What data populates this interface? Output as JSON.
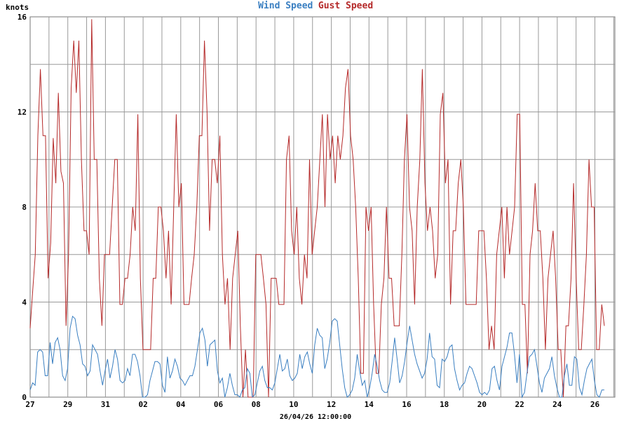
{
  "chart_data": {
    "type": "line",
    "title_parts": [
      {
        "text": "Wind Speed",
        "color": "#3a7fc1"
      },
      {
        "text": "Gust Speed",
        "color": "#b52a2a"
      }
    ],
    "ylabel": "knots",
    "xlabel": "26/04/26 12:00:00",
    "ylim": [
      0,
      16
    ],
    "yticks": [
      0,
      4,
      8,
      12,
      16
    ],
    "grid": true,
    "x_start": 27,
    "x_end": 26.3,
    "x_tick_labels": [
      "27",
      "29",
      "31",
      "02",
      "04",
      "06",
      "08",
      "10",
      "12",
      "14",
      "16",
      "18",
      "20",
      "22",
      "24",
      "26"
    ],
    "series": [
      {
        "name": "Wind Speed",
        "color": "#3a7fc1",
        "values": [
          0.3,
          0.6,
          0.5,
          1.9,
          2.0,
          1.9,
          0.9,
          0.9,
          2.3,
          1.4,
          2.3,
          2.5,
          2.0,
          0.9,
          0.7,
          1.2,
          2.9,
          3.4,
          3.3,
          2.6,
          2.2,
          1.4,
          1.3,
          0.9,
          1.1,
          2.2,
          2.0,
          1.8,
          1.1,
          0.5,
          1.1,
          1.6,
          0.8,
          1.3,
          2.0,
          1.6,
          0.7,
          0.6,
          0.7,
          1.2,
          0.9,
          1.8,
          1.8,
          1.5,
          0.9,
          0.0,
          0.0,
          0.1,
          0.7,
          1.1,
          1.5,
          1.5,
          1.4,
          0.5,
          0.2,
          1.7,
          0.8,
          1.1,
          1.6,
          1.3,
          0.8,
          0.7,
          0.5,
          0.7,
          0.9,
          0.9,
          1.3,
          2.0,
          2.7,
          2.9,
          2.4,
          1.3,
          2.2,
          2.3,
          2.4,
          1.1,
          0.6,
          0.8,
          0.0,
          0.4,
          1.0,
          0.5,
          0.1,
          0.1,
          0.0,
          0.3,
          0.4,
          1.2,
          1.0,
          0.0,
          0.1,
          0.6,
          1.1,
          1.3,
          0.7,
          0.4,
          0.4,
          0.3,
          0.6,
          1.2,
          1.8,
          1.1,
          1.2,
          1.6,
          0.9,
          0.7,
          0.8,
          1.0,
          1.8,
          1.2,
          1.7,
          1.9,
          1.4,
          1.0,
          2.2,
          2.9,
          2.6,
          2.5,
          1.2,
          1.6,
          2.3,
          3.2,
          3.3,
          3.2,
          2.2,
          1.2,
          0.4,
          0.0,
          0.1,
          0.3,
          0.8,
          1.8,
          1.1,
          0.5,
          0.7,
          0.0,
          0.4,
          1.0,
          1.8,
          1.3,
          0.7,
          0.3,
          0.2,
          0.2,
          0.6,
          1.5,
          2.5,
          1.6,
          0.6,
          0.9,
          1.5,
          2.3,
          3.0,
          2.4,
          1.8,
          1.4,
          1.1,
          0.8,
          1.0,
          1.6,
          2.7,
          1.7,
          1.6,
          0.5,
          0.4,
          1.6,
          1.5,
          1.7,
          2.1,
          2.2,
          1.2,
          0.7,
          0.3,
          0.5,
          0.6,
          1.0,
          1.3,
          1.2,
          0.9,
          0.6,
          0.2,
          0.1,
          0.2,
          0.1,
          0.3,
          1.2,
          1.3,
          0.7,
          0.3,
          1.3,
          1.7,
          2.1,
          2.7,
          2.7,
          1.8,
          0.6,
          1.8,
          0.0,
          0.2,
          1.0,
          1.7,
          1.8,
          2.0,
          1.3,
          0.6,
          0.2,
          0.8,
          1.0,
          1.2,
          1.7,
          0.9,
          0.4,
          0.0,
          0.0,
          0.9,
          1.4,
          0.5,
          0.5,
          1.7,
          1.6,
          0.4,
          0.1,
          0.7,
          1.2,
          1.4,
          1.6,
          0.7,
          0.1,
          0.0,
          0.3,
          0.3
        ]
      },
      {
        "name": "Gust Speed",
        "color": "#b52a2a",
        "values": [
          2.9,
          4.5,
          6.0,
          11.0,
          13.8,
          11.0,
          11.0,
          5.0,
          6.5,
          10.9,
          9.0,
          12.8,
          9.5,
          9.0,
          3.0,
          6.0,
          13.0,
          15.0,
          12.8,
          15.0,
          10.0,
          7.0,
          7.0,
          6.0,
          15.9,
          10.0,
          10.0,
          5.0,
          3.0,
          6.0,
          6.0,
          6.0,
          8.0,
          10.0,
          10.0,
          3.9,
          3.9,
          5.0,
          5.0,
          6.0,
          8.0,
          7.0,
          11.9,
          5.0,
          2.0,
          2.0,
          2.0,
          2.0,
          5.0,
          5.0,
          8.0,
          8.0,
          7.0,
          5.0,
          7.0,
          3.9,
          8.0,
          11.9,
          8.0,
          9.0,
          3.9,
          3.9,
          3.9,
          5.0,
          6.0,
          8.0,
          11.0,
          11.0,
          15.0,
          12.0,
          7.0,
          10.0,
          10.0,
          9.0,
          11.0,
          6.0,
          3.9,
          5.0,
          2.0,
          5.0,
          6.0,
          7.0,
          3.0,
          0.0,
          2.0,
          0.0,
          0.0,
          0.0,
          6.0,
          6.0,
          6.0,
          5.0,
          3.9,
          0.0,
          5.0,
          5.0,
          5.0,
          3.9,
          3.9,
          3.9,
          10.0,
          11.0,
          7.0,
          6.0,
          8.0,
          5.0,
          3.9,
          6.0,
          5.0,
          10.0,
          6.0,
          7.0,
          8.0,
          10.0,
          11.9,
          8.0,
          11.9,
          10.0,
          11.0,
          9.0,
          11.0,
          10.0,
          11.0,
          13.0,
          13.8,
          11.0,
          10.0,
          8.0,
          5.0,
          1.0,
          1.0,
          8.0,
          7.0,
          8.0,
          3.9,
          1.0,
          1.0,
          3.9,
          5.0,
          8.0,
          5.0,
          5.0,
          3.0,
          3.0,
          3.0,
          6.0,
          10.0,
          11.9,
          8.0,
          7.0,
          3.9,
          8.0,
          10.0,
          13.8,
          9.0,
          7.0,
          8.0,
          7.0,
          5.0,
          6.0,
          11.9,
          12.8,
          9.0,
          10.0,
          3.9,
          7.0,
          7.0,
          9.0,
          10.0,
          8.0,
          3.9,
          3.9,
          3.9,
          3.9,
          3.9,
          7.0,
          7.0,
          7.0,
          5.0,
          2.0,
          3.0,
          2.0,
          6.0,
          7.0,
          8.0,
          5.0,
          8.0,
          6.0,
          7.0,
          8.0,
          11.9,
          11.9,
          3.9,
          3.9,
          1.0,
          6.0,
          7.0,
          9.0,
          7.0,
          7.0,
          5.0,
          2.0,
          5.0,
          6.0,
          7.0,
          5.0,
          2.0,
          2.0,
          0.0,
          3.0,
          3.0,
          5.0,
          9.0,
          5.0,
          2.0,
          2.0,
          3.9,
          6.0,
          10.0,
          8.0,
          8.0,
          2.0,
          2.0,
          3.9,
          3.0
        ]
      }
    ]
  }
}
